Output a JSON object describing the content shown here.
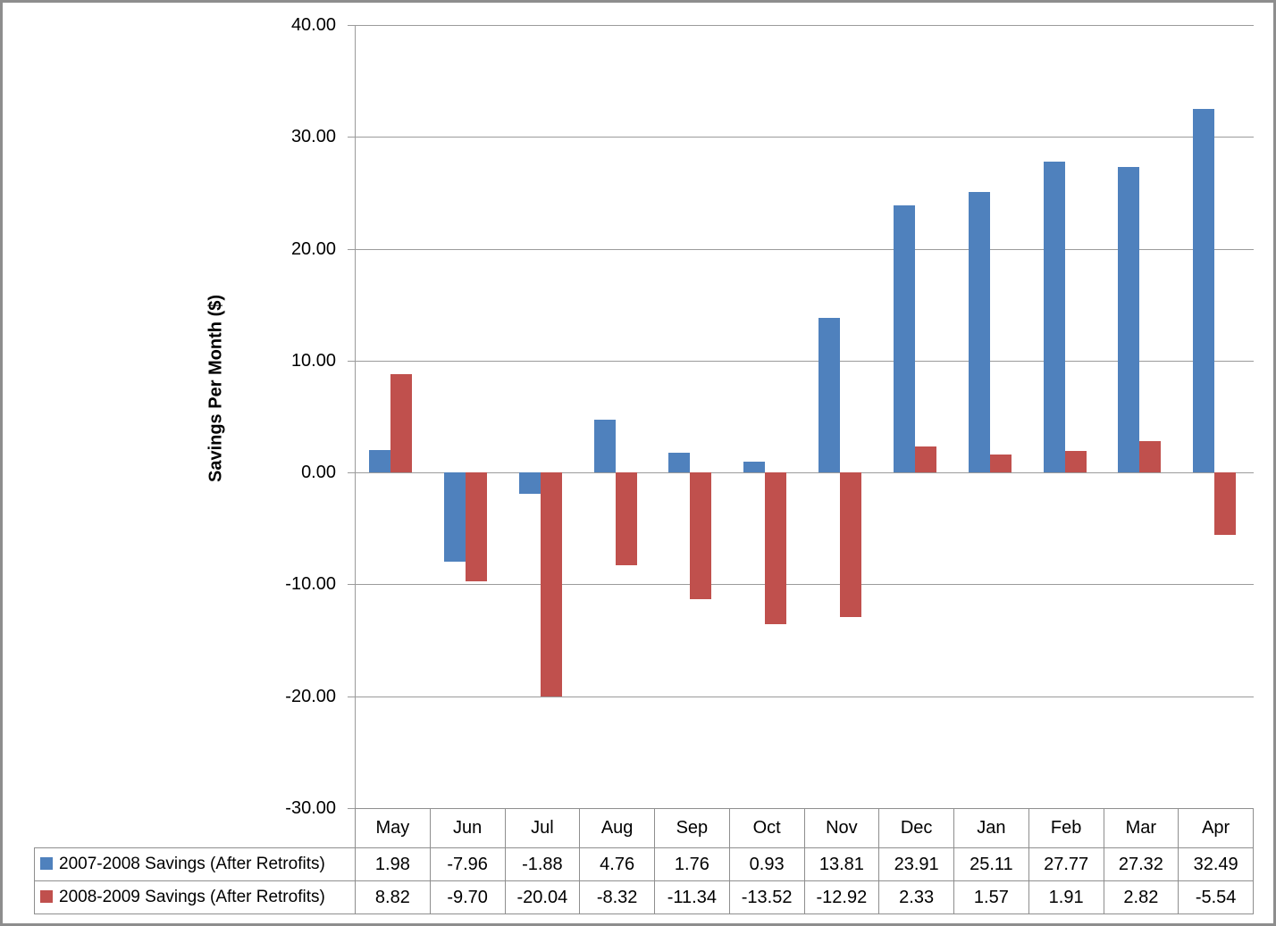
{
  "chart_data": {
    "type": "bar",
    "title": "",
    "xlabel": "",
    "ylabel": "Savings Per Month ($)",
    "categories": [
      "May",
      "Jun",
      "Jul",
      "Aug",
      "Sep",
      "Oct",
      "Nov",
      "Dec",
      "Jan",
      "Feb",
      "Mar",
      "Apr"
    ],
    "series": [
      {
        "name": "2007-2008 Savings (After Retrofits)",
        "color": "#4F81BD",
        "values": [
          1.98,
          -7.96,
          -1.88,
          4.76,
          1.76,
          0.93,
          13.81,
          23.91,
          25.11,
          27.77,
          27.32,
          32.49
        ]
      },
      {
        "name": "2008-2009 Savings (After Retrofits)",
        "color": "#C0504D",
        "values": [
          8.82,
          -9.7,
          -20.04,
          -8.32,
          -11.34,
          -13.52,
          -12.92,
          2.33,
          1.57,
          1.91,
          2.82,
          -5.54
        ]
      }
    ],
    "ylim": [
      -30,
      40
    ],
    "yticks": [
      40,
      30,
      20,
      10,
      0,
      -10,
      -20,
      -30
    ],
    "ytick_labels": [
      "40.00",
      "30.00",
      "20.00",
      "10.00",
      "0.00",
      "-10.00",
      "-20.00",
      "-30.00"
    ],
    "grid": true,
    "legend_position": "data-table-left"
  },
  "colors": {
    "series1": "#4F81BD",
    "series2": "#C0504D",
    "gridline": "#9B9B9B",
    "axis_line": "#9B9B9B",
    "table_border": "#8E8E8E",
    "frame_border": "#8D8D8D",
    "background": "#FFFFFF",
    "text": "#000000"
  }
}
